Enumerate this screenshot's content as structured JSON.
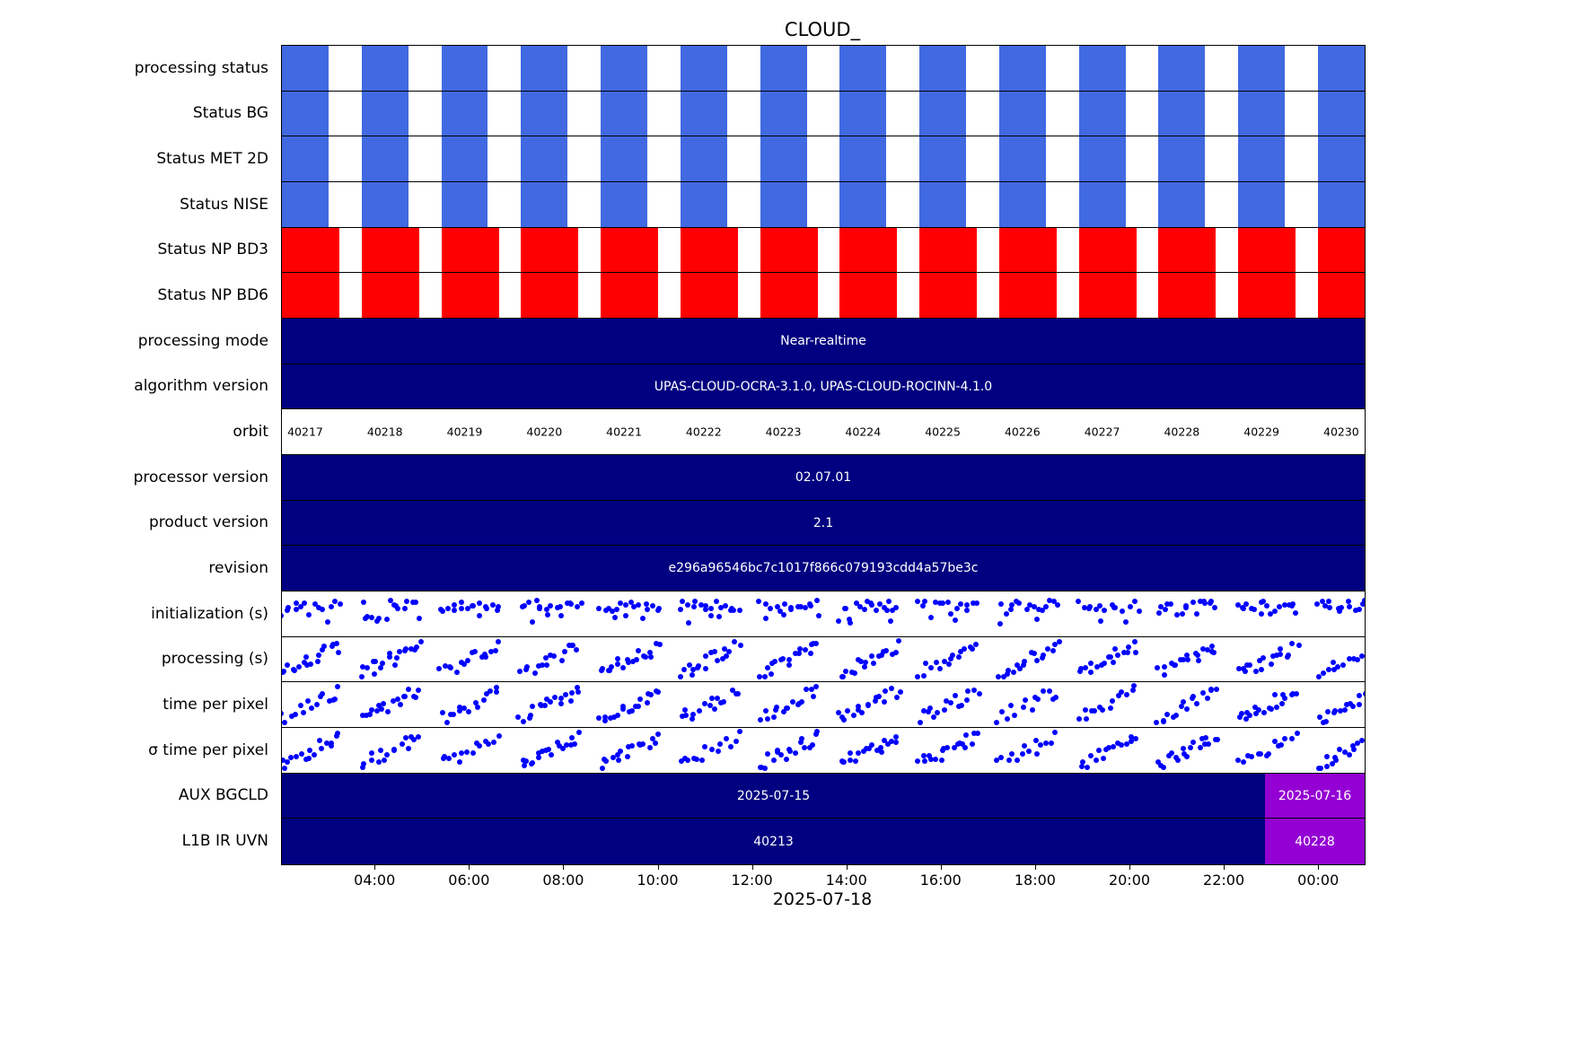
{
  "title": "CLOUD_",
  "xlabel": "2025-07-18",
  "colors": {
    "status_blue": "#4169e1",
    "status_red": "#ff0000",
    "bar_navy": "#000080",
    "bar_purple": "#9400d3",
    "dot_blue": "#0000ff",
    "text_light": "#ffffff",
    "text_dark": "#000000"
  },
  "rows": [
    {
      "label": "processing status",
      "type": "blocks",
      "color": "status_blue"
    },
    {
      "label": "Status BG",
      "type": "blocks",
      "color": "status_blue"
    },
    {
      "label": "Status MET 2D",
      "type": "blocks",
      "color": "status_blue"
    },
    {
      "label": "Status NISE",
      "type": "blocks",
      "color": "status_blue"
    },
    {
      "label": "Status NP BD3",
      "type": "blocks",
      "color": "status_red"
    },
    {
      "label": "Status NP BD6",
      "type": "blocks",
      "color": "status_red"
    },
    {
      "label": "processing mode",
      "type": "bar",
      "text": "Near-realtime"
    },
    {
      "label": "algorithm version",
      "type": "bar",
      "text": "UPAS-CLOUD-OCRA-3.1.0, UPAS-CLOUD-ROCINN-4.1.0"
    },
    {
      "label": "orbit",
      "type": "orbits"
    },
    {
      "label": "processor version",
      "type": "bar",
      "text": "02.07.01"
    },
    {
      "label": "product version",
      "type": "bar",
      "text": "2.1"
    },
    {
      "label": "revision",
      "type": "bar",
      "text": "e296a96546bc7c1017f866c079193cdd4a57be3c"
    },
    {
      "label": "initialization (s)",
      "type": "scatter",
      "pattern": "flat"
    },
    {
      "label": "processing (s)",
      "type": "scatter",
      "pattern": "rise"
    },
    {
      "label": "time per pixel",
      "type": "scatter",
      "pattern": "rise"
    },
    {
      "label": "σ time per pixel",
      "type": "scatter",
      "pattern": "rise"
    },
    {
      "label": "AUX BGCLD",
      "type": "split",
      "main_text": "2025-07-15",
      "tail_text": "2025-07-16"
    },
    {
      "label": "L1B IR UVN",
      "type": "split",
      "main_text": "40213",
      "tail_text": "40228"
    }
  ],
  "chart_data": {
    "type": "heatmap",
    "title": "CLOUD_",
    "xlabel": "2025-07-18",
    "x_axis": {
      "tick_labels": [
        "04:00",
        "06:00",
        "08:00",
        "10:00",
        "12:00",
        "14:00",
        "16:00",
        "18:00",
        "20:00",
        "22:00",
        "00:00"
      ],
      "tick_minutes": [
        240,
        360,
        480,
        600,
        720,
        840,
        960,
        1080,
        1200,
        1320,
        1440
      ],
      "axis_start_minute": 121,
      "axis_end_minute": 1498
    },
    "orbits": [
      "40217",
      "40218",
      "40219",
      "40220",
      "40221",
      "40222",
      "40223",
      "40224",
      "40225",
      "40226",
      "40227",
      "40228",
      "40229",
      "40230"
    ],
    "status_rows": {
      "blue_ok_rows": [
        "processing status",
        "Status BG",
        "Status MET 2D",
        "Status NISE"
      ],
      "red_rows": [
        "Status NP BD3",
        "Status NP BD6"
      ],
      "note": "one colored block per orbit for all 14 orbits in every status row"
    },
    "values": {
      "processing_mode": "Near-realtime",
      "algorithm_version": "UPAS-CLOUD-OCRA-3.1.0, UPAS-CLOUD-ROCINN-4.1.0",
      "processor_version": "02.07.01",
      "product_version": "2.1",
      "revision": "e296a96546bc7c1017f866c079193cdd4a57be3c",
      "aux_bgcld": [
        "2025-07-15",
        "2025-07-16"
      ],
      "l1b_ir_uvn": [
        "40213",
        "40228"
      ]
    },
    "scatter_rows": [
      "initialization (s)",
      "processing (s)",
      "time per pixel",
      "σ time per pixel"
    ],
    "scatter_note": "Blue point clusters, one cluster per orbit; individual values not legible at this scale. initialization holds roughly constant near the top of its band; processing, time per pixel and σ time per pixel rise across each orbit.",
    "layout": {
      "n_orbits": 14,
      "orbit_period_frac": 0.0736,
      "blue_block_frac": 0.0431,
      "red_block_frac": 0.0531,
      "split_tail_start_frac": 0.908,
      "seed": 7,
      "points_per_cluster": 16,
      "cluster_width_frac": 0.057,
      "legend": "none",
      "grid": "row separators only"
    }
  }
}
